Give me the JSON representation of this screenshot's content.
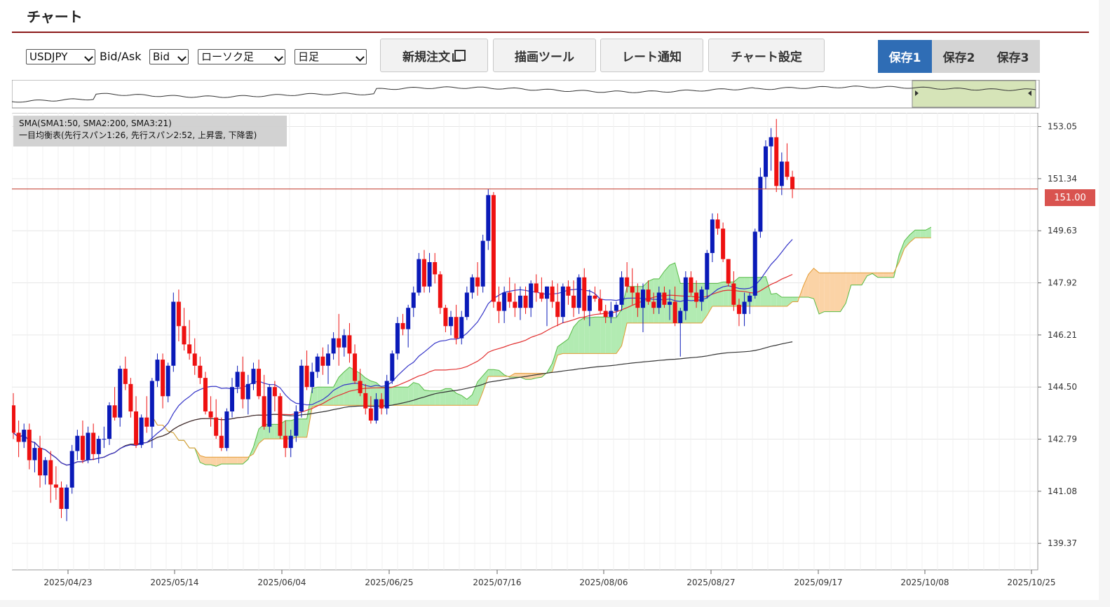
{
  "page": {
    "title": "チャート"
  },
  "toolbar": {
    "symbol": "USDJPY",
    "bid_ask_label": "Bid/Ask",
    "bid_ask": "Bid",
    "chart_type": "ローソク足",
    "timeframe": "日足",
    "buttons": {
      "new_order": "新規注文",
      "drawing": "描画ツール",
      "rate_alert": "レート通知",
      "chart_settings": "チャート設定"
    },
    "saves": [
      {
        "label": "保存1",
        "active": true
      },
      {
        "label": "保存2",
        "active": false
      },
      {
        "label": "保存3",
        "active": false
      }
    ]
  },
  "legend": {
    "line1": "SMA(SMA1:50, SMA2:200, SMA3:21)",
    "line2": "一目均衡表(先行スパン1:26, 先行スパン2:52, 上昇雲, 下降雲)"
  },
  "colors": {
    "up": "#0a1ab8",
    "down": "#ee1111",
    "sma50": "#e23030",
    "sma200": "#333333",
    "sma21": "#3535c8",
    "bull_cloud": "#b2ebb2",
    "bear_cloud": "#fbd3a6",
    "price_line": "#c0392b",
    "title_rule": "#8b1a1a",
    "save_active": "#2f6db5"
  },
  "chart_data": {
    "type": "candlestick",
    "symbol": "USDJPY",
    "timeframe": "日足",
    "current_price": 151.0,
    "current_price_label": "151.00",
    "y_ticks": [
      "153.05",
      "151.34",
      "149.63",
      "147.92",
      "146.21",
      "144.50",
      "142.79",
      "141.08",
      "139.37"
    ],
    "ylim": [
      138.5,
      153.5
    ],
    "x_ticks": [
      "2025/04/23",
      "2025/05/14",
      "2025/06/04",
      "2025/06/25",
      "2025/07/16",
      "2025/08/06",
      "2025/08/27",
      "2025/09/17",
      "2025/10/08",
      "2025/10/25"
    ],
    "candles_ohlc": [
      [
        143.9,
        144.3,
        142.8,
        143.0
      ],
      [
        143.0,
        143.4,
        142.2,
        142.7
      ],
      [
        142.7,
        143.3,
        142.5,
        143.1
      ],
      [
        143.1,
        143.3,
        141.8,
        142.1
      ],
      [
        142.1,
        142.7,
        141.7,
        142.5
      ],
      [
        142.5,
        142.9,
        141.2,
        141.6
      ],
      [
        141.6,
        142.2,
        141.3,
        142.1
      ],
      [
        142.1,
        142.4,
        140.7,
        141.3
      ],
      [
        141.3,
        141.9,
        140.8,
        141.2
      ],
      [
        141.2,
        141.4,
        140.2,
        140.5
      ],
      [
        140.5,
        141.3,
        140.1,
        141.2
      ],
      [
        141.2,
        142.6,
        141.0,
        142.4
      ],
      [
        142.4,
        143.1,
        142.1,
        142.9
      ],
      [
        142.9,
        143.4,
        142.0,
        142.1
      ],
      [
        142.1,
        143.2,
        142.0,
        143.0
      ],
      [
        143.0,
        143.3,
        142.1,
        142.3
      ],
      [
        142.3,
        142.9,
        142.0,
        142.8
      ],
      [
        142.8,
        143.2,
        142.5,
        142.8
      ],
      [
        142.8,
        144.0,
        142.6,
        143.9
      ],
      [
        143.9,
        144.5,
        143.4,
        143.5
      ],
      [
        143.5,
        145.2,
        143.2,
        145.1
      ],
      [
        145.1,
        145.5,
        144.4,
        144.6
      ],
      [
        144.6,
        144.8,
        143.5,
        143.7
      ],
      [
        143.7,
        144.2,
        142.5,
        142.6
      ],
      [
        142.6,
        143.6,
        142.5,
        143.5
      ],
      [
        143.5,
        144.2,
        143.0,
        143.2
      ],
      [
        143.2,
        144.8,
        142.5,
        144.7
      ],
      [
        144.7,
        145.6,
        144.5,
        145.4
      ],
      [
        145.4,
        145.6,
        143.8,
        144.2
      ],
      [
        144.2,
        145.3,
        144.0,
        145.2
      ],
      [
        145.2,
        147.6,
        145.0,
        147.3
      ],
      [
        147.3,
        147.7,
        146.0,
        146.5
      ],
      [
        146.5,
        147.1,
        145.7,
        145.9
      ],
      [
        145.9,
        146.7,
        145.4,
        145.6
      ],
      [
        145.6,
        146.1,
        144.9,
        145.2
      ],
      [
        145.2,
        145.5,
        144.6,
        144.8
      ],
      [
        144.8,
        145.0,
        143.6,
        143.7
      ],
      [
        143.7,
        144.2,
        143.2,
        143.5
      ],
      [
        143.5,
        144.1,
        142.8,
        142.9
      ],
      [
        142.9,
        143.5,
        142.4,
        142.5
      ],
      [
        142.5,
        143.8,
        142.4,
        143.7
      ],
      [
        143.7,
        144.8,
        143.5,
        144.5
      ],
      [
        144.5,
        145.2,
        144.3,
        145.0
      ],
      [
        145.0,
        145.5,
        143.8,
        144.1
      ],
      [
        144.1,
        144.9,
        143.6,
        144.6
      ],
      [
        144.6,
        145.3,
        144.4,
        145.1
      ],
      [
        145.1,
        145.4,
        144.1,
        144.2
      ],
      [
        144.2,
        144.9,
        143.1,
        143.2
      ],
      [
        143.2,
        144.6,
        143.0,
        144.5
      ],
      [
        144.5,
        144.7,
        143.7,
        144.2
      ],
      [
        144.2,
        144.3,
        142.8,
        142.9
      ],
      [
        142.9,
        143.4,
        142.2,
        142.5
      ],
      [
        142.5,
        143.1,
        142.2,
        142.9
      ],
      [
        142.9,
        143.9,
        142.7,
        143.7
      ],
      [
        143.7,
        145.4,
        143.5,
        145.2
      ],
      [
        145.2,
        145.7,
        144.4,
        144.5
      ],
      [
        144.5,
        145.3,
        144.3,
        145.0
      ],
      [
        145.0,
        145.6,
        144.8,
        145.5
      ],
      [
        145.5,
        145.8,
        144.9,
        145.2
      ],
      [
        145.2,
        145.9,
        144.6,
        145.6
      ],
      [
        145.6,
        146.3,
        145.4,
        146.1
      ],
      [
        146.1,
        146.9,
        145.2,
        145.8
      ],
      [
        145.8,
        146.4,
        145.5,
        146.2
      ],
      [
        146.2,
        146.6,
        145.3,
        145.6
      ],
      [
        145.6,
        145.9,
        144.6,
        144.7
      ],
      [
        144.7,
        145.1,
        144.2,
        144.3
      ],
      [
        144.3,
        144.6,
        143.6,
        143.8
      ],
      [
        143.8,
        144.2,
        143.3,
        143.4
      ],
      [
        143.4,
        144.3,
        143.3,
        144.1
      ],
      [
        144.1,
        144.3,
        143.6,
        143.8
      ],
      [
        143.8,
        144.9,
        143.6,
        144.7
      ],
      [
        144.7,
        145.7,
        144.6,
        145.6
      ],
      [
        145.6,
        146.8,
        145.4,
        146.6
      ],
      [
        146.6,
        146.9,
        146.2,
        146.4
      ],
      [
        146.4,
        147.2,
        145.8,
        147.1
      ],
      [
        147.1,
        147.8,
        146.8,
        147.6
      ],
      [
        147.6,
        148.9,
        147.5,
        148.7
      ],
      [
        148.7,
        149.0,
        147.6,
        147.8
      ],
      [
        147.8,
        148.9,
        147.6,
        148.6
      ],
      [
        148.6,
        148.9,
        147.9,
        148.2
      ],
      [
        148.2,
        148.3,
        146.9,
        147.1
      ],
      [
        147.1,
        147.2,
        146.3,
        146.5
      ],
      [
        146.5,
        147.0,
        146.2,
        146.8
      ],
      [
        146.8,
        147.2,
        145.9,
        146.1
      ],
      [
        146.1,
        147.0,
        145.9,
        146.8
      ],
      [
        146.8,
        147.8,
        146.7,
        147.6
      ],
      [
        147.6,
        148.2,
        147.4,
        148.1
      ],
      [
        148.1,
        148.6,
        147.5,
        147.8
      ],
      [
        147.8,
        149.5,
        147.6,
        149.3
      ],
      [
        149.3,
        151.0,
        149.0,
        150.8
      ],
      [
        150.8,
        150.9,
        147.1,
        147.3
      ],
      [
        147.3,
        147.8,
        146.6,
        147.0
      ],
      [
        147.0,
        147.8,
        146.6,
        147.6
      ],
      [
        147.6,
        148.1,
        147.1,
        147.3
      ],
      [
        147.3,
        147.9,
        146.8,
        147.1
      ],
      [
        147.1,
        147.8,
        146.7,
        147.5
      ],
      [
        147.5,
        147.8,
        146.9,
        147.1
      ],
      [
        147.1,
        148.0,
        146.8,
        147.9
      ],
      [
        147.9,
        148.2,
        147.3,
        147.6
      ],
      [
        147.6,
        148.1,
        147.3,
        147.4
      ],
      [
        147.4,
        147.8,
        146.5,
        147.8
      ],
      [
        147.8,
        148.0,
        147.1,
        147.3
      ],
      [
        147.3,
        147.9,
        146.5,
        146.8
      ],
      [
        146.8,
        147.9,
        146.6,
        147.8
      ],
      [
        147.8,
        148.0,
        147.2,
        147.5
      ],
      [
        147.5,
        148.0,
        146.8,
        147.1
      ],
      [
        147.1,
        148.2,
        146.9,
        148.1
      ],
      [
        148.1,
        148.4,
        146.7,
        147.0
      ],
      [
        147.0,
        147.7,
        146.5,
        147.5
      ],
      [
        147.5,
        147.8,
        147.3,
        147.4
      ],
      [
        147.4,
        147.7,
        146.9,
        147.0
      ],
      [
        147.0,
        147.2,
        146.6,
        146.8
      ],
      [
        146.8,
        147.3,
        146.6,
        147.0
      ],
      [
        147.0,
        147.3,
        146.8,
        147.2
      ],
      [
        147.2,
        148.3,
        147.0,
        148.1
      ],
      [
        148.1,
        148.6,
        147.6,
        147.8
      ],
      [
        147.8,
        148.4,
        147.2,
        147.6
      ],
      [
        147.6,
        147.9,
        146.8,
        147.1
      ],
      [
        147.1,
        147.9,
        146.3,
        147.7
      ],
      [
        147.7,
        148.0,
        147.2,
        147.3
      ],
      [
        147.3,
        147.6,
        146.9,
        147.1
      ],
      [
        147.1,
        147.8,
        146.9,
        147.6
      ],
      [
        147.6,
        147.8,
        147.1,
        147.2
      ],
      [
        147.2,
        147.7,
        146.7,
        147.3
      ],
      [
        147.3,
        147.8,
        146.5,
        146.6
      ],
      [
        146.6,
        147.1,
        145.5,
        147.0
      ],
      [
        147.0,
        148.3,
        146.7,
        148.1
      ],
      [
        148.1,
        148.3,
        147.5,
        147.6
      ],
      [
        147.6,
        148.0,
        147.1,
        147.3
      ],
      [
        147.3,
        147.8,
        147.0,
        147.7
      ],
      [
        147.7,
        149.0,
        147.4,
        148.9
      ],
      [
        148.9,
        150.2,
        148.6,
        150.0
      ],
      [
        150.0,
        150.2,
        149.5,
        149.7
      ],
      [
        149.7,
        149.9,
        148.6,
        148.7
      ],
      [
        148.7,
        148.7,
        147.8,
        147.9
      ],
      [
        147.9,
        148.3,
        147.0,
        147.2
      ],
      [
        147.2,
        147.4,
        146.5,
        146.9
      ],
      [
        146.9,
        147.6,
        146.5,
        147.3
      ],
      [
        147.3,
        147.6,
        146.9,
        147.5
      ],
      [
        147.5,
        149.7,
        147.4,
        149.6
      ],
      [
        149.6,
        151.7,
        149.4,
        151.4
      ],
      [
        151.4,
        152.6,
        151.0,
        152.4
      ],
      [
        152.4,
        153.0,
        151.6,
        152.7
      ],
      [
        152.7,
        153.3,
        150.9,
        151.1
      ],
      [
        151.1,
        152.2,
        150.8,
        151.9
      ],
      [
        151.9,
        152.5,
        151.3,
        151.4
      ],
      [
        151.4,
        151.6,
        150.7,
        151.0
      ]
    ],
    "ichimoku_shift_bars": 26
  }
}
